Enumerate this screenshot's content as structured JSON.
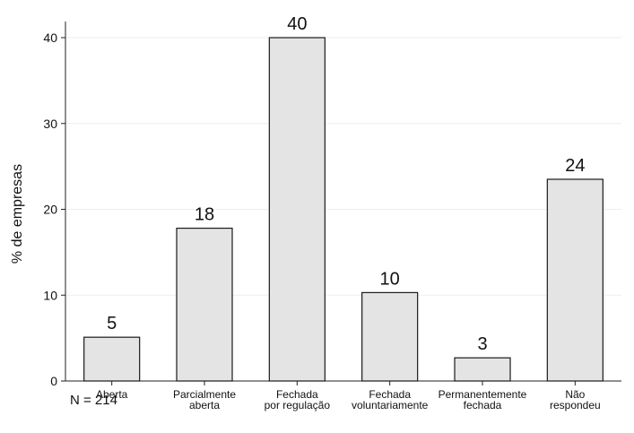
{
  "chart_data": {
    "type": "bar",
    "ylabel": "% de empresas",
    "xlabel": "",
    "ylim": [
      0,
      40
    ],
    "yticks": [
      0,
      10,
      20,
      30,
      40
    ],
    "grid": true,
    "categories": [
      [
        "Aberta"
      ],
      [
        "Parcialmente",
        "aberta"
      ],
      [
        "Fechada",
        "por regulação"
      ],
      [
        "Fechada",
        "voluntariamente"
      ],
      [
        "Permanentemente",
        "fechada"
      ],
      [
        "Não",
        "respondeu"
      ]
    ],
    "values": [
      5.1,
      17.8,
      40.0,
      10.3,
      2.7,
      23.5
    ],
    "data_labels": [
      "5",
      "18",
      "40",
      "10",
      "3",
      "24"
    ],
    "bar_color": "#e4e4e4",
    "bar_edge_color": "#1a1a1a"
  },
  "note": "N = 214"
}
